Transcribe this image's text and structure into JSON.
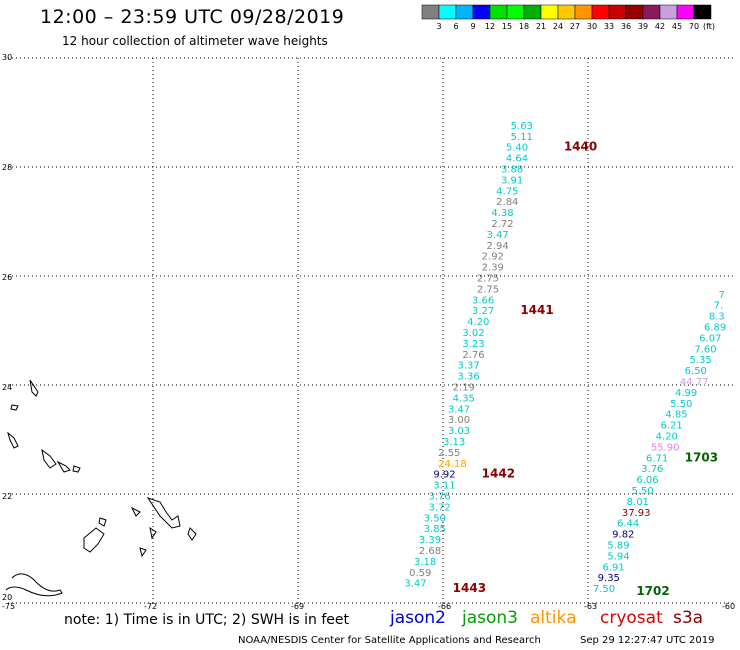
{
  "header": {
    "title": "12:00 – 23:59 UTC 09/28/2019",
    "subtitle": "12 hour collection of altimeter wave heights"
  },
  "colorbar": {
    "unit": "(ft)",
    "colors": [
      "#808080",
      "#00ffff",
      "#00b4ff",
      "#0000ff",
      "#00e000",
      "#00ff00",
      "#00b000",
      "#ffff00",
      "#ffc800",
      "#ff9600",
      "#ff0000",
      "#c80000",
      "#960000",
      "#8b1a5a",
      "#c8a0e0",
      "#ff00ff",
      "#000000"
    ],
    "labels": [
      "3",
      "6",
      "9",
      "12",
      "15",
      "18",
      "21",
      "24",
      "27",
      "30",
      "33",
      "36",
      "39",
      "42",
      "45",
      "70"
    ]
  },
  "axes": {
    "y_labels": [
      "30",
      "28",
      "26",
      "24",
      "22",
      "20"
    ],
    "x_labels": [
      "-75",
      "-72",
      "-69",
      "-66",
      "-63",
      "-60"
    ]
  },
  "chart_data": {
    "type": "scatter",
    "xlim": [
      -75,
      -60
    ],
    "ylim": [
      20,
      30
    ],
    "gridlines": true,
    "passes": [
      {
        "id": "1443",
        "label_pos": [
          -65.8,
          20.2
        ],
        "label_color": "#8b0000",
        "points": [
          [
            -66.8,
            20.3,
            "3.47",
            "#00cccc"
          ],
          [
            -66.7,
            20.5,
            "0.59",
            "#808080"
          ],
          [
            -66.6,
            20.7,
            "3.18",
            "#00cccc"
          ],
          [
            -66.5,
            20.9,
            "2.68",
            "#808080"
          ],
          [
            -66.5,
            21.1,
            "3.39",
            "#00cccc"
          ],
          [
            -66.4,
            21.3,
            "3.85",
            "#00cccc"
          ],
          [
            -66.4,
            21.5,
            "3.50",
            "#00cccc"
          ],
          [
            -66.3,
            21.7,
            "3.72",
            "#00cccc"
          ],
          [
            -66.3,
            21.9,
            "3.76",
            "#00cccc"
          ],
          [
            -66.2,
            22.1,
            "3.11",
            "#00cccc"
          ],
          [
            -66.2,
            22.3,
            "9.92",
            "#000080"
          ]
        ]
      },
      {
        "id": "1442",
        "label_pos": [
          -65.2,
          22.3
        ],
        "label_color": "#8b0000",
        "points": [
          [
            -66.1,
            22.5,
            "24.18",
            "#ffa000"
          ],
          [
            -66.1,
            22.7,
            "2.55",
            "#808080"
          ],
          [
            -66.0,
            22.9,
            "3.13",
            "#00cccc"
          ],
          [
            -65.9,
            23.1,
            "3.03",
            "#00cccc"
          ],
          [
            -65.9,
            23.3,
            "3.00",
            "#808080"
          ],
          [
            -65.9,
            23.5,
            "3.47",
            "#00cccc"
          ],
          [
            -65.8,
            23.7,
            "4.35",
            "#00cccc"
          ],
          [
            -65.8,
            23.9,
            "2.19",
            "#808080"
          ],
          [
            -65.7,
            24.1,
            "3.36",
            "#00cccc"
          ],
          [
            -65.7,
            24.3,
            "3.37",
            "#00cccc"
          ],
          [
            -65.6,
            24.5,
            "2.76",
            "#808080"
          ],
          [
            -65.6,
            24.7,
            "3.23",
            "#00cccc"
          ],
          [
            -65.6,
            24.9,
            "3.02",
            "#00cccc"
          ],
          [
            -65.5,
            25.1,
            "4.20",
            "#00cccc"
          ]
        ]
      },
      {
        "id": "1441",
        "label_pos": [
          -64.4,
          25.3
        ],
        "label_color": "#8b0000",
        "points": [
          [
            -65.4,
            25.3,
            "3.27",
            "#00cccc"
          ],
          [
            -65.4,
            25.5,
            "3.66",
            "#00cccc"
          ],
          [
            -65.3,
            25.7,
            "2.75",
            "#808080"
          ],
          [
            -65.3,
            25.9,
            "2.75",
            "#808080"
          ],
          [
            -65.2,
            26.1,
            "2.39",
            "#808080"
          ],
          [
            -65.2,
            26.3,
            "2.92",
            "#808080"
          ],
          [
            -65.1,
            26.5,
            "2.94",
            "#808080"
          ],
          [
            -65.1,
            26.7,
            "3.47",
            "#00cccc"
          ],
          [
            -65.0,
            26.9,
            "2.72",
            "#808080"
          ],
          [
            -65.0,
            27.1,
            "4.38",
            "#00cccc"
          ],
          [
            -64.9,
            27.3,
            "2.84",
            "#808080"
          ],
          [
            -64.9,
            27.5,
            "4.75",
            "#00cccc"
          ],
          [
            -64.8,
            27.7,
            "3.91",
            "#00cccc"
          ],
          [
            -64.8,
            27.9,
            "3.88",
            "#00cccc"
          ],
          [
            -64.7,
            28.1,
            "4.64",
            "#00cccc"
          ]
        ]
      },
      {
        "id": "1440",
        "label_pos": [
          -63.5,
          28.3
        ],
        "label_color": "#8b0000",
        "points": [
          [
            -64.7,
            28.3,
            "5.40",
            "#00cccc"
          ],
          [
            -64.6,
            28.5,
            "5.11",
            "#00cccc"
          ],
          [
            -64.6,
            28.7,
            "5.63",
            "#00cccc"
          ]
        ]
      },
      {
        "id": "1702",
        "label_pos": [
          -62.0,
          20.15
        ],
        "label_color": "#006400",
        "points": [
          [
            -62.9,
            20.2,
            "7.50",
            "#00cccc"
          ],
          [
            -62.8,
            20.4,
            "9.35",
            "#000080"
          ],
          [
            -62.7,
            20.6,
            "6.91",
            "#00cccc"
          ],
          [
            -62.6,
            20.8,
            "5.94",
            "#00cccc"
          ],
          [
            -62.6,
            21.0,
            "5.89",
            "#00cccc"
          ],
          [
            -62.5,
            21.2,
            "9.82",
            "#000080"
          ],
          [
            -62.4,
            21.4,
            "6.44",
            "#00cccc"
          ],
          [
            -62.3,
            21.6,
            "37.93",
            "#8b0000"
          ],
          [
            -62.2,
            21.8,
            "8.01",
            "#00cccc"
          ],
          [
            -62.1,
            22.0,
            "5.50",
            "#00cccc"
          ],
          [
            -62.0,
            22.2,
            "6.06",
            "#00cccc"
          ]
        ]
      },
      {
        "id": "1703",
        "label_pos": [
          -61.0,
          22.6
        ],
        "label_color": "#006400",
        "points": [
          [
            -61.9,
            22.4,
            "3.76",
            "#00cccc"
          ],
          [
            -61.8,
            22.6,
            "6.71",
            "#00cccc"
          ],
          [
            -61.7,
            22.8,
            "55.90",
            "#e080ff"
          ],
          [
            -61.6,
            23.0,
            "4.20",
            "#00cccc"
          ],
          [
            -61.5,
            23.2,
            "6.21",
            "#00cccc"
          ],
          [
            -61.4,
            23.4,
            "4.85",
            "#00cccc"
          ],
          [
            -61.3,
            23.6,
            "5.50",
            "#00cccc"
          ],
          [
            -61.2,
            23.8,
            "4.99",
            "#00cccc"
          ],
          [
            -61.1,
            24.0,
            "44.77",
            "#c8a0e0"
          ],
          [
            -61.0,
            24.2,
            "6.50",
            "#00cccc"
          ],
          [
            -60.9,
            24.4,
            "5.35",
            "#00cccc"
          ],
          [
            -60.8,
            24.6,
            "7.60",
            "#00cccc"
          ],
          [
            -60.7,
            24.8,
            "6.07",
            "#00cccc"
          ],
          [
            -60.6,
            25.0,
            "6.89",
            "#00cccc"
          ],
          [
            -60.5,
            25.2,
            "8.3",
            "#00cccc"
          ],
          [
            -60.4,
            25.4,
            "7.",
            "#00cccc"
          ],
          [
            -60.3,
            25.6,
            "7",
            "#00cccc"
          ]
        ]
      }
    ]
  },
  "footer": {
    "note": "note: 1) Time is in UTC; 2) SWH is in feet",
    "satellites": [
      {
        "name": "jason2",
        "color": "#0000e0"
      },
      {
        "name": "jason3",
        "color": "#00a000"
      },
      {
        "name": "altika",
        "color": "#ff9600"
      },
      {
        "name": "cryosat",
        "color": "#e00000"
      },
      {
        "name": "s3a",
        "color": "#8b0000"
      }
    ],
    "credit": "NOAA/NESDIS Center for Satellite Applications and Research",
    "timestamp": "Sep 29 12:27:47 UTC 2019"
  }
}
